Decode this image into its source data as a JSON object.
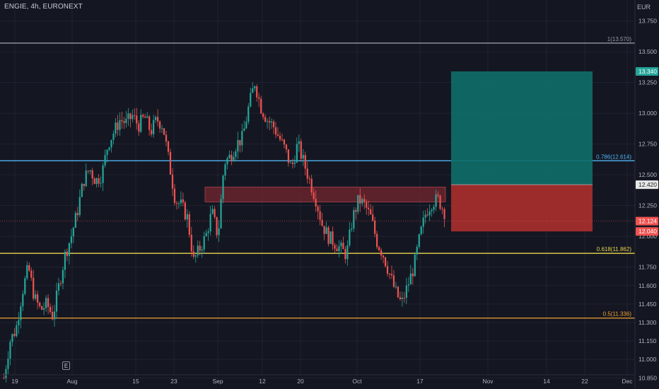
{
  "header": {
    "symbol": "ENGIE, 4h, EURONEXT",
    "currency": "EUR"
  },
  "markers": {
    "earnings": "E"
  },
  "colors": {
    "background": "#141722",
    "grid": "#1f2330",
    "up": "#26a69a",
    "down": "#ef5350",
    "fib_1": "#9598a1",
    "fib_0786": "#4fb3f0",
    "fib_0618": "#e8d44d",
    "fib_05": "#f0a030",
    "zone": "#7a2830",
    "target": "#0e6e68",
    "stop": "#b3302d"
  },
  "chart_data": {
    "type": "candlestick",
    "ylim": [
      10.76,
      13.92
    ],
    "y_ticks": [
      "13.750",
      "13.500",
      "13.250",
      "13.000",
      "12.750",
      "12.500",
      "12.250",
      "12.000",
      "11.750",
      "11.600",
      "11.450",
      "11.300",
      "11.150",
      "11.000",
      "10.850"
    ],
    "x_ticks": [
      "19",
      "Aug",
      "15",
      "23",
      "Sep",
      "12",
      "20",
      "Oct",
      "17",
      "Nov",
      "14",
      "22",
      "Dec"
    ],
    "price_labels": [
      {
        "text": "13.340",
        "value": 13.34,
        "type": "target"
      },
      {
        "text": "12.420",
        "value": 12.42,
        "type": "entry"
      },
      {
        "text": "12.124",
        "value": 12.124,
        "type": "last"
      },
      {
        "text": "12.040",
        "value": 12.04,
        "type": "stop"
      }
    ],
    "fib_levels": [
      {
        "label": "1(13.570)",
        "value": 13.57,
        "color": "fib_1"
      },
      {
        "label": "0.786(12.614)",
        "value": 12.614,
        "color": "fib_0786"
      },
      {
        "label": "0.618(11.862)",
        "value": 11.862,
        "color": "fib_0618"
      },
      {
        "label": "0.5(11.336)",
        "value": 11.336,
        "color": "fib_05"
      }
    ],
    "zone": {
      "top": 12.4,
      "bottom": 12.28,
      "start": "Sep 1",
      "end": "Oct 21"
    },
    "position": {
      "entry": 12.42,
      "target": 13.34,
      "stop": 12.04
    },
    "last_price_line": 12.124,
    "path": [
      10.85,
      11.15,
      11.25,
      11.55,
      11.75,
      11.5,
      11.4,
      11.45,
      11.35,
      11.6,
      11.85,
      12.0,
      12.2,
      12.45,
      12.55,
      12.45,
      12.5,
      12.75,
      12.85,
      12.95,
      12.92,
      12.98,
      12.9,
      12.97,
      12.85,
      12.95,
      12.9,
      12.6,
      12.3,
      12.25,
      12.15,
      11.8,
      11.9,
      12.0,
      12.2,
      12.0,
      12.6,
      12.65,
      12.75,
      12.8,
      13.05,
      13.25,
      13.05,
      12.95,
      12.9,
      12.8,
      12.7,
      12.55,
      12.75,
      12.6,
      12.45,
      12.3,
      12.1,
      12.0,
      11.95,
      11.9,
      11.85,
      12.15,
      12.3,
      12.25,
      12.15,
      11.95,
      11.85,
      11.7,
      11.55,
      11.45,
      11.6,
      11.75,
      12.0,
      12.2,
      12.28,
      12.3,
      12.2
    ]
  }
}
